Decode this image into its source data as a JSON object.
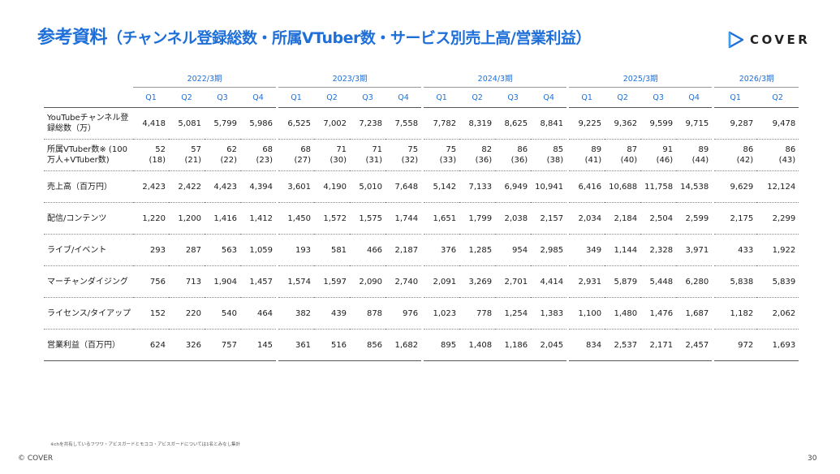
{
  "header": {
    "title_main": "参考資料",
    "title_sub": "（チャンネル登録総数・所属VTuber数・サービス別売上高/営業利益）",
    "logo_text": "COVER",
    "logo_color": "#1e6fd8"
  },
  "table": {
    "periods": [
      "2022/3期",
      "2023/3期",
      "2024/3期",
      "2025/3期",
      "2026/3期"
    ],
    "quarters": [
      "Q1",
      "Q2",
      "Q3",
      "Q4",
      "Q1",
      "Q2",
      "Q3",
      "Q4",
      "Q1",
      "Q2",
      "Q3",
      "Q4",
      "Q1",
      "Q2",
      "Q3",
      "Q4",
      "Q1",
      "Q2"
    ],
    "rows": [
      {
        "label": "YouTubeチャンネル登録総数（万）",
        "values": [
          "4,418",
          "5,081",
          "5,799",
          "5,986",
          "6,525",
          "7,002",
          "7,238",
          "7,558",
          "7,782",
          "8,319",
          "8,625",
          "8,841",
          "9,225",
          "9,362",
          "9,599",
          "9,715",
          "9,287",
          "9,478"
        ],
        "sub": null
      },
      {
        "label": "所属VTuber数※ (100万人+VTuber数)",
        "values": [
          "52",
          "57",
          "62",
          "68",
          "68",
          "71",
          "71",
          "75",
          "75",
          "82",
          "86",
          "85",
          "89",
          "87",
          "91",
          "89",
          "86",
          "86"
        ],
        "sub": [
          "(18)",
          "(21)",
          "(22)",
          "(23)",
          "(27)",
          "(30)",
          "(31)",
          "(32)",
          "(33)",
          "(36)",
          "(36)",
          "(38)",
          "(41)",
          "(40)",
          "(46)",
          "(44)",
          "(42)",
          "(43)"
        ]
      },
      {
        "label": "売上高（百万円）",
        "values": [
          "2,423",
          "2,422",
          "4,423",
          "4,394",
          "3,601",
          "4,190",
          "5,010",
          "7,648",
          "5,142",
          "7,133",
          "6,949",
          "10,941",
          "6,416",
          "10,688",
          "11,758",
          "14,538",
          "9,629",
          "12,124"
        ],
        "sub": null
      },
      {
        "label": "配信/コンテンツ",
        "values": [
          "1,220",
          "1,200",
          "1,416",
          "1,412",
          "1,450",
          "1,572",
          "1,575",
          "1,744",
          "1,651",
          "1,799",
          "2,038",
          "2,157",
          "2,034",
          "2,184",
          "2,504",
          "2,599",
          "2,175",
          "2,299"
        ],
        "sub": null
      },
      {
        "label": "ライブ/イベント",
        "values": [
          "293",
          "287",
          "563",
          "1,059",
          "193",
          "581",
          "466",
          "2,187",
          "376",
          "1,285",
          "954",
          "2,985",
          "349",
          "1,144",
          "2,328",
          "3,971",
          "433",
          "1,922"
        ],
        "sub": null
      },
      {
        "label": "マーチャンダイジング",
        "values": [
          "756",
          "713",
          "1,904",
          "1,457",
          "1,574",
          "1,597",
          "2,090",
          "2,740",
          "2,091",
          "3,269",
          "2,701",
          "4,414",
          "2,931",
          "5,879",
          "5,448",
          "6,280",
          "5,838",
          "5,839"
        ],
        "sub": null
      },
      {
        "label": "ライセンス/タイアップ",
        "values": [
          "152",
          "220",
          "540",
          "464",
          "382",
          "439",
          "878",
          "976",
          "1,023",
          "778",
          "1,254",
          "1,383",
          "1,100",
          "1,480",
          "1,476",
          "1,687",
          "1,182",
          "2,062"
        ],
        "sub": null
      },
      {
        "label": "営業利益（百万円）",
        "values": [
          "624",
          "326",
          "757",
          "145",
          "361",
          "516",
          "856",
          "1,682",
          "895",
          "1,408",
          "1,186",
          "2,045",
          "834",
          "2,537",
          "2,171",
          "2,457",
          "972",
          "1,693"
        ],
        "sub": null
      }
    ]
  },
  "footer": {
    "footnote": "※chを共有しているフワワ・アビスガードとモココ・アビスガードについては1名とみなし集計",
    "copyright": "© COVER",
    "page_number": "30"
  }
}
